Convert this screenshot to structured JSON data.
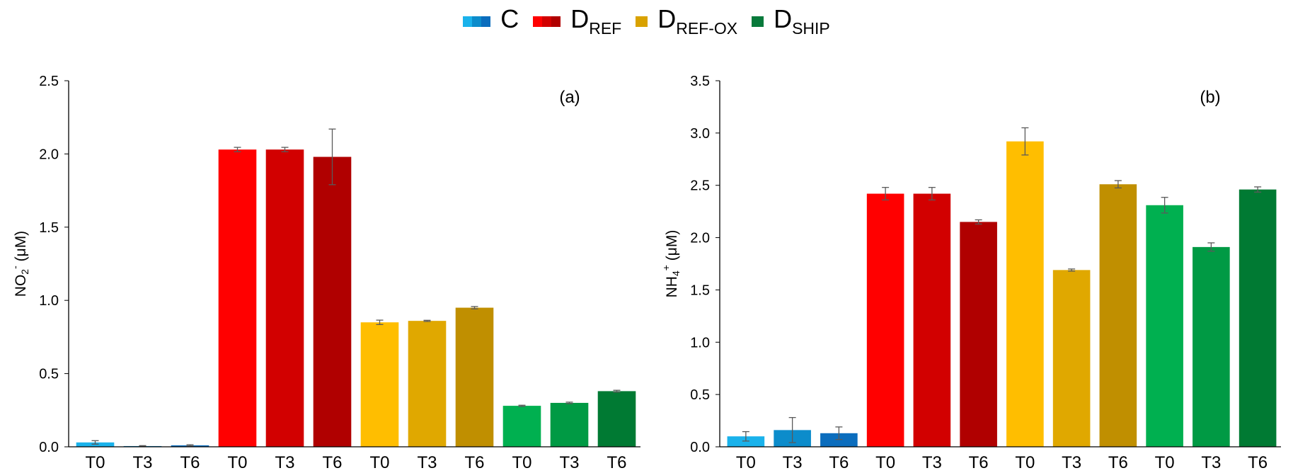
{
  "legend": [
    {
      "base": "C",
      "sub": "",
      "icon": "legend-swatch-c",
      "colors": [
        "#1AB2EB",
        "#0C8CCB",
        "#0B6DBD"
      ]
    },
    {
      "base": "D",
      "sub": "REF",
      "icon": "legend-swatch-dref",
      "colors": [
        "#FF0000",
        "#D20000",
        "#B00000"
      ]
    },
    {
      "base": "D",
      "sub": "REF-OX",
      "icon": "legend-swatch-dref-ox",
      "colors": [
        "#D9A200"
      ]
    },
    {
      "base": "D",
      "sub": "SHIP",
      "icon": "legend-swatch-dship",
      "colors": [
        "#087A3B"
      ]
    }
  ],
  "chart_data": [
    {
      "type": "bar",
      "panel_label": "(a)",
      "ylabel": {
        "base": "NO",
        "sub": "2",
        "sup": "-",
        "unit": " (μM)"
      },
      "ylim": [
        0,
        2.5
      ],
      "yticks": [
        "0.0",
        "0.5",
        "1.0",
        "1.5",
        "2.0",
        "2.5"
      ],
      "categories": [
        "T0",
        "T3",
        "T6",
        "T0",
        "T3",
        "T6",
        "T0",
        "T3",
        "T6",
        "T0",
        "T3",
        "T6"
      ],
      "values": [
        0.03,
        0.005,
        0.01,
        2.03,
        2.03,
        1.98,
        0.85,
        0.86,
        0.95,
        0.28,
        0.3,
        0.38
      ],
      "errors": [
        0.012,
        0.003,
        0.004,
        0.015,
        0.015,
        0.19,
        0.015,
        0.004,
        0.008,
        0.004,
        0.005,
        0.006
      ],
      "colors": [
        "#1AB2EB",
        "#0C8CCB",
        "#0B6DBD",
        "#FF0000",
        "#D20000",
        "#B00000",
        "#FFBE00",
        "#E0A800",
        "#C08F00",
        "#00B050",
        "#009A44",
        "#007A33"
      ]
    },
    {
      "type": "bar",
      "panel_label": "(b)",
      "ylabel": {
        "base": "NH",
        "sub": "4",
        "sup": "+",
        "unit": " (μM)"
      },
      "ylim": [
        0,
        3.5
      ],
      "yticks": [
        "0.0",
        "0.5",
        "1.0",
        "1.5",
        "2.0",
        "2.5",
        "3.0",
        "3.5"
      ],
      "categories": [
        "T0",
        "T3",
        "T6",
        "T0",
        "T3",
        "T6",
        "T0",
        "T3",
        "T6",
        "T0",
        "T3",
        "T6"
      ],
      "values": [
        0.1,
        0.16,
        0.13,
        2.42,
        2.42,
        2.15,
        2.92,
        1.69,
        2.51,
        2.31,
        1.91,
        2.46
      ],
      "errors": [
        0.045,
        0.12,
        0.06,
        0.06,
        0.06,
        0.02,
        0.13,
        0.01,
        0.035,
        0.075,
        0.04,
        0.025
      ],
      "colors": [
        "#1AB2EB",
        "#0C8CCB",
        "#0B6DBD",
        "#FF0000",
        "#D20000",
        "#B00000",
        "#FFBE00",
        "#E0A800",
        "#C08F00",
        "#00B050",
        "#009A44",
        "#007A33"
      ]
    }
  ]
}
